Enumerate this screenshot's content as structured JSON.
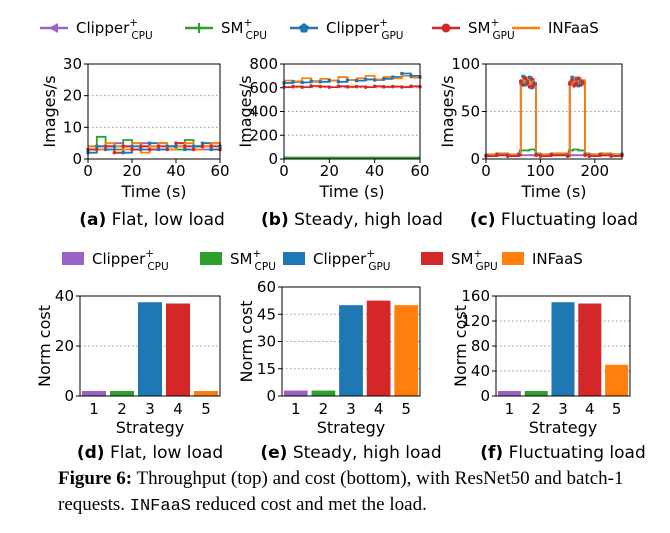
{
  "colors": {
    "clipper_cpu": "#9a62c6",
    "sm_cpu": "#2ca02c",
    "clipper_gpu": "#1f77b4",
    "sm_gpu": "#d62728",
    "infaas": "#ff7f0e"
  },
  "legend_top": [
    {
      "base": "Clipper",
      "sup": "+",
      "sub": "CPU",
      "marker": "triangle-left",
      "color_key": "clipper_cpu"
    },
    {
      "base": "SM",
      "sup": "+",
      "sub": "CPU",
      "marker": "plus",
      "color_key": "sm_cpu"
    },
    {
      "base": "Clipper",
      "sup": "+",
      "sub": "GPU",
      "marker": "pentagon",
      "color_key": "clipper_gpu"
    },
    {
      "base": "SM",
      "sup": "+",
      "sub": "GPU",
      "marker": "circle",
      "color_key": "sm_gpu"
    },
    {
      "base": "INFaaS",
      "sup": "",
      "sub": "",
      "marker": "line",
      "color_key": "infaas"
    }
  ],
  "legend_bottom": [
    {
      "base": "Clipper",
      "sup": "+",
      "sub": "CPU",
      "color_key": "clipper_cpu"
    },
    {
      "base": "SM",
      "sup": "+",
      "sub": "CPU",
      "color_key": "sm_cpu"
    },
    {
      "base": "Clipper",
      "sup": "+",
      "sub": "GPU",
      "color_key": "clipper_gpu"
    },
    {
      "base": "SM",
      "sup": "+",
      "sub": "GPU",
      "color_key": "sm_gpu"
    },
    {
      "base": "INFaaS",
      "sup": "",
      "sub": "",
      "color_key": "infaas"
    }
  ],
  "chart_data": [
    {
      "type": "line",
      "panel": "a",
      "sublabel": "(a)",
      "subtitle": "Flat, low load",
      "xlabel": "Time (s)",
      "ylabel": "Images/s",
      "xlim": [
        0,
        60
      ],
      "ylim": [
        0,
        30
      ],
      "xticks": [
        0,
        20,
        40,
        60
      ],
      "yticks": [
        0,
        10,
        20,
        30
      ],
      "grid": "horizontal dotted",
      "series": [
        {
          "color_key": "clipper_cpu",
          "x": [
            0,
            4,
            8,
            12,
            16,
            20,
            24,
            28,
            32,
            36,
            40,
            44,
            48,
            52,
            56,
            60
          ],
          "y": [
            3,
            4,
            3,
            5,
            4,
            3,
            5,
            4,
            3,
            4,
            5,
            3,
            4,
            3,
            5,
            4
          ]
        },
        {
          "color_key": "sm_cpu",
          "x": [
            0,
            4,
            8,
            12,
            16,
            20,
            24,
            28,
            32,
            36,
            40,
            44,
            48,
            52,
            56,
            60
          ],
          "y": [
            4,
            7,
            4,
            3,
            6,
            5,
            4,
            3,
            5,
            4,
            3,
            6,
            4,
            5,
            3,
            5
          ]
        },
        {
          "color_key": "clipper_gpu",
          "x": [
            0,
            4,
            8,
            12,
            16,
            20,
            24,
            28,
            32,
            36,
            40,
            44,
            48,
            52,
            56,
            60
          ],
          "y": [
            2,
            4,
            3,
            4,
            2,
            4,
            3,
            5,
            3,
            4,
            4,
            3,
            4,
            5,
            3,
            4
          ]
        },
        {
          "color_key": "sm_gpu",
          "x": [
            0,
            4,
            8,
            12,
            16,
            20,
            24,
            28,
            32,
            36,
            40,
            44,
            48,
            52,
            56,
            60
          ],
          "y": [
            3,
            3,
            4,
            2,
            4,
            3,
            4,
            3,
            4,
            3,
            5,
            4,
            3,
            4,
            4,
            3
          ]
        },
        {
          "color_key": "infaas",
          "x": [
            0,
            4,
            8,
            12,
            16,
            20,
            24,
            28,
            32,
            36,
            40,
            44,
            48,
            52,
            56,
            60
          ],
          "y": [
            4,
            3,
            5,
            4,
            3,
            5,
            2,
            4,
            5,
            3,
            4,
            5,
            3,
            4,
            5,
            4
          ]
        }
      ]
    },
    {
      "type": "line",
      "panel": "b",
      "sublabel": "(b)",
      "subtitle": "Steady, high load",
      "xlabel": "Time (s)",
      "ylabel": "Images/s",
      "xlim": [
        0,
        60
      ],
      "ylim": [
        0,
        800
      ],
      "xticks": [
        0,
        20,
        40,
        60
      ],
      "yticks": [
        0,
        200,
        400,
        600,
        800
      ],
      "grid": "horizontal dotted",
      "series": [
        {
          "color_key": "clipper_cpu",
          "x": [
            0,
            60
          ],
          "y": [
            10,
            10
          ]
        },
        {
          "color_key": "sm_cpu",
          "x": [
            0,
            60
          ],
          "y": [
            12,
            12
          ]
        },
        {
          "color_key": "clipper_gpu",
          "x": [
            0,
            4,
            8,
            12,
            16,
            20,
            24,
            28,
            32,
            36,
            40,
            44,
            48,
            52,
            56,
            60
          ],
          "y": [
            640,
            650,
            645,
            655,
            650,
            660,
            650,
            665,
            660,
            670,
            665,
            675,
            690,
            720,
            700,
            690
          ]
        },
        {
          "color_key": "sm_gpu",
          "x": [
            0,
            4,
            8,
            12,
            16,
            20,
            24,
            28,
            32,
            36,
            40,
            44,
            48,
            52,
            56,
            60
          ],
          "y": [
            605,
            610,
            605,
            615,
            610,
            605,
            612,
            608,
            610,
            605,
            612,
            608,
            610,
            606,
            612,
            608
          ]
        },
        {
          "color_key": "infaas",
          "x": [
            0,
            4,
            8,
            12,
            16,
            20,
            24,
            28,
            32,
            36,
            40,
            44,
            48,
            52,
            56,
            60
          ],
          "y": [
            660,
            655,
            680,
            650,
            675,
            660,
            690,
            665,
            680,
            700,
            670,
            690,
            680,
            700,
            685,
            695
          ]
        }
      ]
    },
    {
      "type": "line",
      "panel": "c",
      "sublabel": "(c)",
      "subtitle": "Fluctuating load",
      "xlabel": "Time (s)",
      "ylabel": "Images/s",
      "xlim": [
        0,
        250
      ],
      "ylim": [
        0,
        100
      ],
      "xticks": [
        0,
        100,
        200
      ],
      "yticks": [
        0,
        50,
        100
      ],
      "grid": "horizontal dotted",
      "series": [
        {
          "color_key": "clipper_cpu",
          "x": [
            0,
            20,
            40,
            60,
            70,
            75,
            80,
            85,
            90,
            100,
            120,
            140,
            160,
            165,
            170,
            175,
            180,
            190,
            210,
            230,
            250
          ],
          "y": [
            4,
            4,
            4,
            4,
            4,
            4,
            4,
            4,
            4,
            4,
            4,
            4,
            4,
            4,
            4,
            4,
            4,
            4,
            4,
            4,
            4
          ]
        },
        {
          "color_key": "sm_cpu",
          "x": [
            0,
            20,
            40,
            60,
            62,
            70,
            80,
            90,
            92,
            100,
            120,
            150,
            152,
            160,
            170,
            180,
            182,
            190,
            210,
            230,
            250
          ],
          "y": [
            4,
            5,
            4,
            5,
            9,
            9,
            10,
            9,
            4,
            5,
            4,
            5,
            9,
            10,
            9,
            9,
            4,
            5,
            4,
            5,
            4
          ]
        },
        {
          "color_key": "clipper_gpu",
          "x": [
            0,
            20,
            40,
            60,
            64,
            68,
            72,
            76,
            80,
            84,
            88,
            92,
            100,
            120,
            150,
            154,
            158,
            162,
            166,
            170,
            174,
            178,
            182,
            190,
            210,
            230,
            250
          ],
          "y": [
            4,
            5,
            4,
            5,
            80,
            87,
            78,
            82,
            86,
            75,
            80,
            5,
            4,
            5,
            4,
            80,
            86,
            78,
            84,
            77,
            82,
            80,
            5,
            4,
            5,
            4,
            5
          ]
        },
        {
          "color_key": "sm_gpu",
          "x": [
            0,
            20,
            40,
            60,
            64,
            68,
            72,
            76,
            80,
            84,
            88,
            92,
            100,
            120,
            150,
            154,
            158,
            162,
            166,
            170,
            174,
            178,
            182,
            190,
            210,
            230,
            250
          ],
          "y": [
            3,
            4,
            3,
            4,
            82,
            78,
            85,
            80,
            76,
            84,
            78,
            4,
            3,
            4,
            3,
            79,
            83,
            77,
            80,
            85,
            78,
            81,
            4,
            3,
            4,
            3,
            4
          ]
        },
        {
          "color_key": "infaas",
          "x": [
            0,
            20,
            40,
            60,
            64,
            68,
            72,
            76,
            80,
            84,
            88,
            92,
            100,
            120,
            150,
            154,
            158,
            162,
            166,
            170,
            174,
            178,
            182,
            190,
            210,
            230,
            250
          ],
          "y": [
            5,
            6,
            5,
            6,
            78,
            84,
            80,
            86,
            79,
            83,
            77,
            6,
            5,
            6,
            5,
            82,
            78,
            86,
            80,
            84,
            79,
            83,
            6,
            5,
            6,
            5,
            6
          ]
        }
      ]
    },
    {
      "type": "bar",
      "panel": "d",
      "sublabel": "(d)",
      "subtitle": "Flat, low load",
      "xlabel": "Strategy",
      "ylabel": "Norm cost",
      "categories": [
        "1",
        "2",
        "3",
        "4",
        "5"
      ],
      "values": [
        2,
        2,
        37.5,
        37,
        2
      ],
      "color_keys": [
        "clipper_cpu",
        "sm_cpu",
        "clipper_gpu",
        "sm_gpu",
        "infaas"
      ],
      "ylim": [
        0,
        40
      ],
      "yticks": [
        0,
        20,
        40
      ],
      "grid": "horizontal dotted"
    },
    {
      "type": "bar",
      "panel": "e",
      "sublabel": "(e)",
      "subtitle": "Steady, high load",
      "xlabel": "Strategy",
      "ylabel": "Norm cost",
      "categories": [
        "1",
        "2",
        "3",
        "4",
        "5"
      ],
      "values": [
        3,
        3,
        50,
        52.5,
        50
      ],
      "color_keys": [
        "clipper_cpu",
        "sm_cpu",
        "clipper_gpu",
        "sm_gpu",
        "infaas"
      ],
      "ylim": [
        0,
        60
      ],
      "yticks": [
        0,
        15,
        30,
        45,
        60
      ],
      "grid": "horizontal dotted"
    },
    {
      "type": "bar",
      "panel": "f",
      "sublabel": "(f)",
      "subtitle": "Fluctuating load",
      "xlabel": "Strategy",
      "ylabel": "Norm cost",
      "categories": [
        "1",
        "2",
        "3",
        "4",
        "5"
      ],
      "values": [
        8,
        8,
        150,
        148,
        50
      ],
      "color_keys": [
        "clipper_cpu",
        "sm_cpu",
        "clipper_gpu",
        "sm_gpu",
        "infaas"
      ],
      "ylim": [
        0,
        160
      ],
      "yticks": [
        0,
        40,
        80,
        120,
        160
      ],
      "grid": "horizontal dotted"
    }
  ],
  "caption": {
    "label": "Figure 6:",
    "text_1": " Throughput (top) and cost (bottom), with ResNet50 and batch-1 requests. ",
    "mono": "INFaaS",
    "text_2": " reduced cost and met the load."
  }
}
